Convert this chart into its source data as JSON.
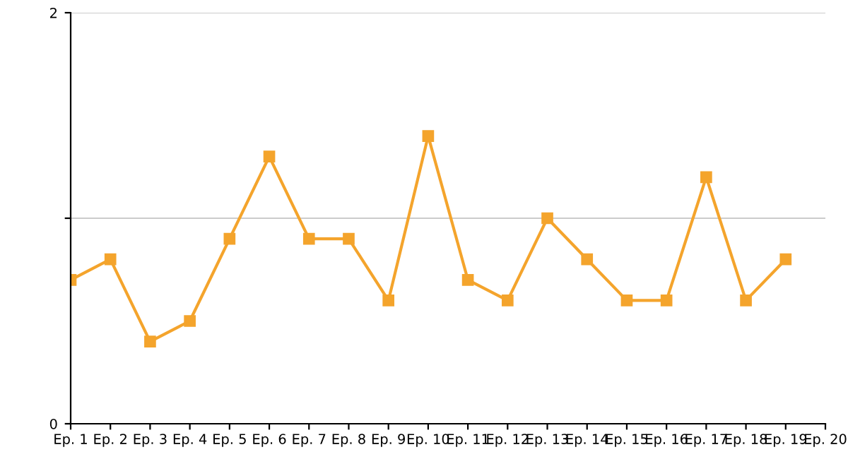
{
  "chart_data": {
    "type": "line",
    "categories": [
      "Ep. 1",
      "Ep. 2",
      "Ep. 3",
      "Ep. 4",
      "Ep. 5",
      "Ep. 6",
      "Ep. 7",
      "Ep. 8",
      "Ep. 9",
      "Ep. 10",
      "Ep. 11",
      "Ep. 12",
      "Ep. 13",
      "Ep. 14",
      "Ep. 15",
      "Ep. 16",
      "Ep. 17",
      "Ep. 18",
      "Ep. 19",
      "Ep. 20"
    ],
    "series": [
      {
        "color": "#f4a42c",
        "values": [
          0.7,
          0.8,
          0.4,
          0.5,
          0.9,
          1.3,
          0.9,
          0.9,
          0.6,
          1.4,
          0.7,
          0.6,
          1.0,
          0.8,
          0.6,
          0.6,
          1.2,
          0.6,
          0.8,
          null
        ]
      }
    ],
    "ylim": [
      0,
      2
    ],
    "yticks": [
      0,
      {
        "value": 1,
        "label": null
      },
      2
    ],
    "grid": "y",
    "marker": "square",
    "line_style": "solid"
  }
}
